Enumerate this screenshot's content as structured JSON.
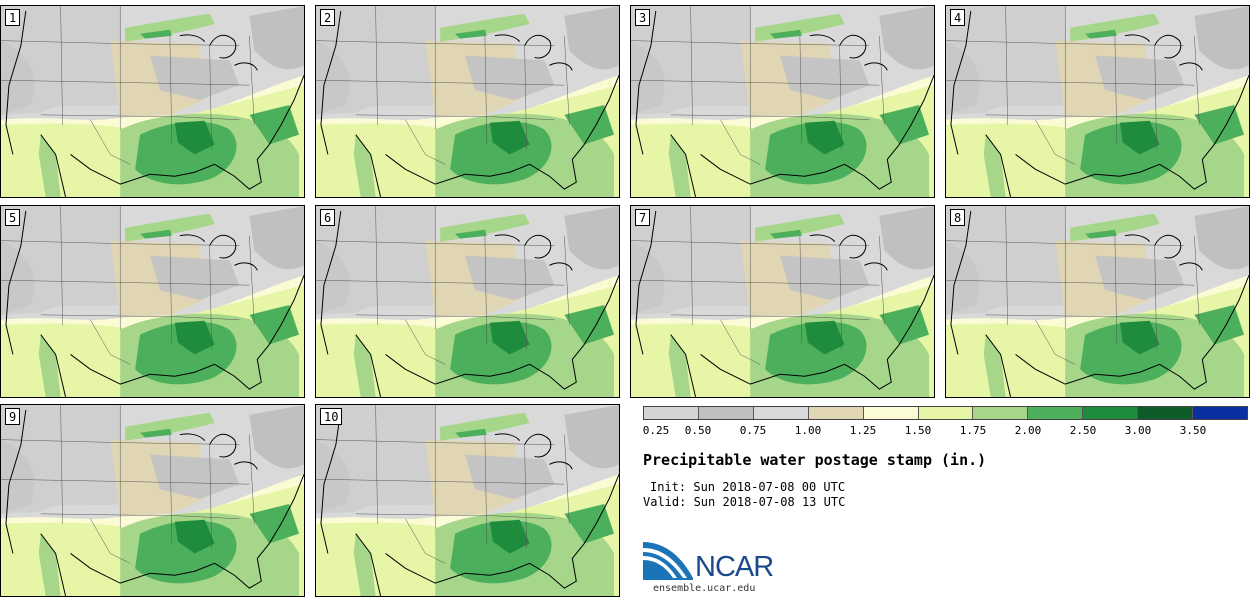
{
  "panels": [
    {
      "label": "1"
    },
    {
      "label": "2"
    },
    {
      "label": "3"
    },
    {
      "label": "4"
    },
    {
      "label": "5"
    },
    {
      "label": "6"
    },
    {
      "label": "7"
    },
    {
      "label": "8"
    },
    {
      "label": "9"
    },
    {
      "label": "10"
    }
  ],
  "colorbar": {
    "colors": [
      "#d4d4d4",
      "#c0c0c0",
      "#d9d9d9",
      "#e0d6b4",
      "#fbfbd6",
      "#e6f6a6",
      "#a6d68a",
      "#4caf5c",
      "#1e8c3c",
      "#0e5c2a",
      "#0a2fa0"
    ],
    "ticks": [
      "0.25",
      "0.50",
      "0.75",
      "1.00",
      "1.25",
      "1.50",
      "1.75",
      "2.00",
      "2.50",
      "3.00",
      "3.50"
    ]
  },
  "title": "Precipitable water postage stamp (in.)",
  "init": "Init: Sun 2018-07-08 00 UTC",
  "valid": "Valid: Sun 2018-07-08 13 UTC",
  "logo": {
    "text": "NCAR",
    "url": "ensemble.ucar.edu"
  }
}
